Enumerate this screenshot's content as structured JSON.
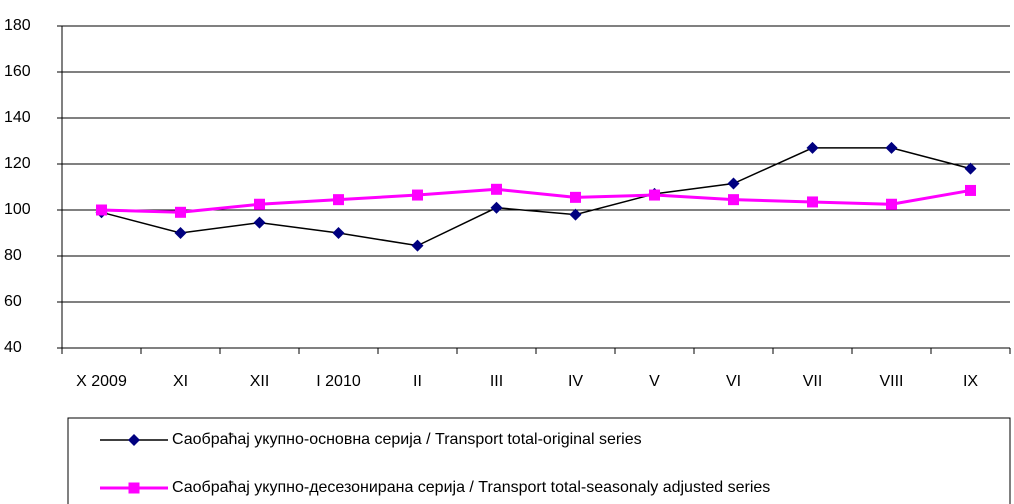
{
  "chart_data": {
    "type": "line",
    "categories": [
      "X 2009",
      "XI",
      "XII",
      "I 2010",
      "II",
      "III",
      "IV",
      "V",
      "VI",
      "VII",
      "VIII",
      "IX"
    ],
    "series": [
      {
        "name": "Саобраћај укупно-основна серија / Transport total-original series",
        "color": "#000080",
        "marker": "diamond",
        "values": [
          99,
          90,
          94.5,
          90,
          84.5,
          101,
          98,
          107,
          111.5,
          127,
          127,
          118
        ]
      },
      {
        "name": "Саобраћај укупно-десезонирана серија / Transport total-seasonaly adjusted series",
        "color": "#ff00ff",
        "marker": "square",
        "values": [
          100,
          99,
          102.5,
          104.5,
          106.5,
          109,
          105.5,
          106.5,
          104.5,
          103.5,
          102.5,
          108.5
        ]
      }
    ],
    "ylim": [
      40,
      180
    ],
    "yticks": [
      40,
      60,
      80,
      100,
      120,
      140,
      160,
      180
    ],
    "grid": true,
    "legend": "bottom"
  }
}
